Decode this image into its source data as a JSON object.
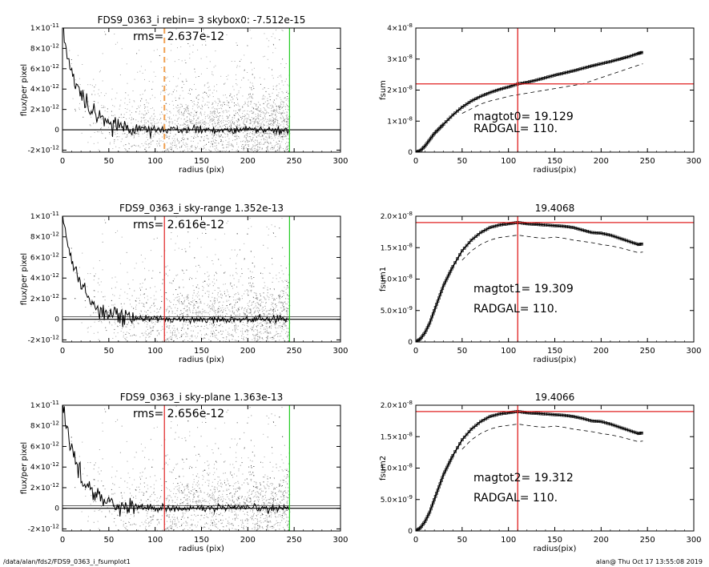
{
  "footer": {
    "left": "/data/alan/fds2/FDS9_0363_i_fsumplot1",
    "right": "alan@  Thu Oct 17 13:55:08 2019"
  },
  "colors": {
    "scatter": "#a8a8a8",
    "profile": "#000000",
    "red": "#e02020",
    "green": "#22cc22",
    "orange": "#f0a050"
  },
  "chart_data": [
    {
      "type": "scatter",
      "panel": "flux-1",
      "title": "FDS9_0363_i rebin= 3    skybox0: -7.512e-15",
      "annotation": "rms= 2.637e-12",
      "xlabel": "radius (pix)",
      "ylabel": "flux/per pixel",
      "xlim": [
        0,
        300
      ],
      "ylim": [
        -2.2e-12,
        1e-11
      ],
      "xticks": [
        0,
        50,
        100,
        150,
        200,
        250,
        300
      ],
      "yticks": [
        {
          "value": 1e-11,
          "label": "1×10",
          "exp": "-11"
        },
        {
          "value": 8e-12,
          "label": "8×10",
          "exp": "-12"
        },
        {
          "value": 6e-12,
          "label": "6×10",
          "exp": "-12"
        },
        {
          "value": 4e-12,
          "label": "4×10",
          "exp": "-12"
        },
        {
          "value": 2e-12,
          "label": "2×10",
          "exp": "-12"
        },
        {
          "value": 0,
          "label": "0",
          "exp": ""
        },
        {
          "value": -2e-12,
          "label": "-2×10",
          "exp": "-12"
        }
      ],
      "vlines": [
        {
          "x": 110,
          "color": "orange",
          "dash": true
        },
        {
          "x": 245,
          "color": "green",
          "dash": false
        }
      ],
      "hline": 0,
      "scatter_max_radius": 245
    },
    {
      "type": "line",
      "panel": "fsum-1",
      "title": "",
      "annotations": [
        "magtot0=  19.129",
        "RADGAL=    110."
      ],
      "xlabel": "radius(pix)",
      "ylabel": "fsum",
      "xlim": [
        0,
        300
      ],
      "ylim": [
        0,
        4e-08
      ],
      "xticks": [
        0,
        50,
        100,
        150,
        200,
        250,
        300
      ],
      "yticks": [
        {
          "value": 0,
          "label": "0",
          "exp": ""
        },
        {
          "value": 1e-08,
          "label": "1×10",
          "exp": "-8"
        },
        {
          "value": 2e-08,
          "label": "2×10",
          "exp": "-8"
        },
        {
          "value": 3e-08,
          "label": "3×10",
          "exp": "-8"
        },
        {
          "value": 4e-08,
          "label": "4×10",
          "exp": "-8"
        }
      ],
      "vline": 110,
      "hline": 2.2e-08,
      "series": [
        {
          "style": "squares",
          "x": [
            0,
            5,
            10,
            15,
            20,
            25,
            30,
            40,
            50,
            60,
            70,
            80,
            90,
            100,
            110,
            120,
            130,
            140,
            150,
            160,
            170,
            180,
            190,
            200,
            210,
            220,
            230,
            240,
            245
          ],
          "y": [
            0,
            5e-10,
            2e-09,
            4e-09,
            6e-09,
            7.5e-09,
            9e-09,
            1.2e-08,
            1.45e-08,
            1.65e-08,
            1.8e-08,
            1.92e-08,
            2.02e-08,
            2.1e-08,
            2.2e-08,
            2.25e-08,
            2.32e-08,
            2.4e-08,
            2.48e-08,
            2.55e-08,
            2.62e-08,
            2.7e-08,
            2.78e-08,
            2.85e-08,
            2.92e-08,
            3e-08,
            3.08e-08,
            3.18e-08,
            3.22e-08
          ]
        },
        {
          "style": "dashed",
          "x": [
            50,
            60,
            70,
            80,
            90,
            100,
            110,
            120,
            130,
            140,
            150,
            160,
            170,
            180,
            190,
            200,
            210,
            220,
            230,
            240,
            245
          ],
          "y": [
            1.25e-08,
            1.4e-08,
            1.55e-08,
            1.65e-08,
            1.72e-08,
            1.8e-08,
            1.85e-08,
            1.9e-08,
            1.95e-08,
            2e-08,
            2.05e-08,
            2.1e-08,
            2.15e-08,
            2.2e-08,
            2.3e-08,
            2.4e-08,
            2.5e-08,
            2.6e-08,
            2.7e-08,
            2.8e-08,
            2.85e-08
          ]
        }
      ]
    },
    {
      "type": "scatter",
      "panel": "flux-2",
      "title": "FDS9_0363_i sky-range  1.352e-13",
      "annotation": "rms= 2.616e-12",
      "xlabel": "radius (pix)",
      "ylabel": "flux/per pixel",
      "xlim": [
        0,
        300
      ],
      "ylim": [
        -2.2e-12,
        1e-11
      ],
      "xticks": [
        0,
        50,
        100,
        150,
        200,
        250,
        300
      ],
      "yticks": [
        {
          "value": 1e-11,
          "label": "1×10",
          "exp": "-11"
        },
        {
          "value": 8e-12,
          "label": "8×10",
          "exp": "-12"
        },
        {
          "value": 6e-12,
          "label": "6×10",
          "exp": "-12"
        },
        {
          "value": 4e-12,
          "label": "4×10",
          "exp": "-12"
        },
        {
          "value": 2e-12,
          "label": "2×10",
          "exp": "-12"
        },
        {
          "value": 0,
          "label": "0",
          "exp": ""
        },
        {
          "value": -2e-12,
          "label": "-2×10",
          "exp": "-12"
        }
      ],
      "vlines": [
        {
          "x": 110,
          "color": "red",
          "dash": false
        },
        {
          "x": 245,
          "color": "green",
          "dash": false
        }
      ],
      "hline": 0,
      "scatter_max_radius": 245
    },
    {
      "type": "line",
      "panel": "fsum-2",
      "title": "19.4068",
      "annotations": [
        "magtot1=  19.309",
        "RADGAL=    110."
      ],
      "xlabel": "radius(pix)",
      "ylabel": "fsum1",
      "xlim": [
        0,
        300
      ],
      "ylim": [
        0,
        2e-08
      ],
      "xticks": [
        0,
        50,
        100,
        150,
        200,
        250,
        300
      ],
      "yticks": [
        {
          "value": 0,
          "label": "0",
          "exp": ""
        },
        {
          "value": 5e-09,
          "label": "5.0×10",
          "exp": "-9"
        },
        {
          "value": 1e-08,
          "label": "1.0×10",
          "exp": "-8"
        },
        {
          "value": 1.5e-08,
          "label": "1.5×10",
          "exp": "-8"
        },
        {
          "value": 2e-08,
          "label": "2.0×10",
          "exp": "-8"
        }
      ],
      "vline": 110,
      "hline": 1.9e-08,
      "series": [
        {
          "style": "squares",
          "x": [
            0,
            5,
            10,
            15,
            20,
            25,
            30,
            35,
            40,
            50,
            60,
            70,
            80,
            90,
            100,
            110,
            120,
            130,
            140,
            150,
            160,
            170,
            180,
            190,
            200,
            210,
            220,
            230,
            240,
            245
          ],
          "y": [
            0,
            5e-10,
            1.5e-09,
            3e-09,
            5e-09,
            7e-09,
            9e-09,
            1.05e-08,
            1.2e-08,
            1.45e-08,
            1.62e-08,
            1.74e-08,
            1.82e-08,
            1.86e-08,
            1.88e-08,
            1.9e-08,
            1.88e-08,
            1.87e-08,
            1.86e-08,
            1.85e-08,
            1.84e-08,
            1.82e-08,
            1.78e-08,
            1.74e-08,
            1.73e-08,
            1.7e-08,
            1.65e-08,
            1.6e-08,
            1.55e-08,
            1.56e-08
          ]
        },
        {
          "style": "dashed",
          "x": [
            50,
            60,
            70,
            80,
            90,
            100,
            110,
            120,
            130,
            140,
            150,
            160,
            170,
            180,
            190,
            200,
            210,
            220,
            230,
            240,
            245
          ],
          "y": [
            1.3e-08,
            1.45e-08,
            1.55e-08,
            1.62e-08,
            1.66e-08,
            1.68e-08,
            1.7e-08,
            1.68e-08,
            1.66e-08,
            1.65e-08,
            1.67e-08,
            1.65e-08,
            1.62e-08,
            1.6e-08,
            1.58e-08,
            1.55e-08,
            1.53e-08,
            1.5e-08,
            1.46e-08,
            1.42e-08,
            1.43e-08
          ]
        }
      ]
    },
    {
      "type": "scatter",
      "panel": "flux-3",
      "title": "FDS9_0363_i sky-plane  1.363e-13",
      "annotation": "rms= 2.656e-12",
      "xlabel": "radius (pix)",
      "ylabel": "flux/per pixel",
      "xlim": [
        0,
        300
      ],
      "ylim": [
        -2.2e-12,
        1e-11
      ],
      "xticks": [
        0,
        50,
        100,
        150,
        200,
        250,
        300
      ],
      "yticks": [
        {
          "value": 1e-11,
          "label": "1×10",
          "exp": "-11"
        },
        {
          "value": 8e-12,
          "label": "8×10",
          "exp": "-12"
        },
        {
          "value": 6e-12,
          "label": "6×10",
          "exp": "-12"
        },
        {
          "value": 4e-12,
          "label": "4×10",
          "exp": "-12"
        },
        {
          "value": 2e-12,
          "label": "2×10",
          "exp": "-12"
        },
        {
          "value": 0,
          "label": "0",
          "exp": ""
        },
        {
          "value": -2e-12,
          "label": "-2×10",
          "exp": "-12"
        }
      ],
      "vlines": [
        {
          "x": 110,
          "color": "red",
          "dash": false
        },
        {
          "x": 245,
          "color": "green",
          "dash": false
        }
      ],
      "hline": 0,
      "scatter_max_radius": 245
    },
    {
      "type": "line",
      "panel": "fsum-3",
      "title": "19.4066",
      "annotations": [
        "magtot2=  19.312",
        "RADGAL=    110."
      ],
      "xlabel": "radius(pix)",
      "ylabel": "fsum2",
      "xlim": [
        0,
        300
      ],
      "ylim": [
        0,
        2e-08
      ],
      "xticks": [
        0,
        50,
        100,
        150,
        200,
        250,
        300
      ],
      "yticks": [
        {
          "value": 0,
          "label": "0",
          "exp": ""
        },
        {
          "value": 5e-09,
          "label": "5.0×10",
          "exp": "-9"
        },
        {
          "value": 1e-08,
          "label": "1.0×10",
          "exp": "-8"
        },
        {
          "value": 1.5e-08,
          "label": "1.5×10",
          "exp": "-8"
        },
        {
          "value": 2e-08,
          "label": "2.0×10",
          "exp": "-8"
        }
      ],
      "vline": 110,
      "hline": 1.9e-08,
      "series": [
        {
          "style": "squares",
          "x": [
            0,
            5,
            10,
            15,
            20,
            25,
            30,
            35,
            40,
            50,
            60,
            70,
            80,
            90,
            100,
            110,
            120,
            130,
            140,
            150,
            160,
            170,
            180,
            190,
            200,
            210,
            220,
            230,
            240,
            245
          ],
          "y": [
            0,
            5e-10,
            1.5e-09,
            3e-09,
            5e-09,
            7e-09,
            9e-09,
            1.05e-08,
            1.2e-08,
            1.45e-08,
            1.62e-08,
            1.74e-08,
            1.82e-08,
            1.86e-08,
            1.88e-08,
            1.9e-08,
            1.88e-08,
            1.87e-08,
            1.86e-08,
            1.85e-08,
            1.84e-08,
            1.82e-08,
            1.79e-08,
            1.75e-08,
            1.74e-08,
            1.7e-08,
            1.65e-08,
            1.6e-08,
            1.55e-08,
            1.56e-08
          ]
        },
        {
          "style": "dashed",
          "x": [
            50,
            60,
            70,
            80,
            90,
            100,
            110,
            120,
            130,
            140,
            150,
            160,
            170,
            180,
            190,
            200,
            210,
            220,
            230,
            240,
            245
          ],
          "y": [
            1.3e-08,
            1.45e-08,
            1.55e-08,
            1.62e-08,
            1.66e-08,
            1.68e-08,
            1.7e-08,
            1.68e-08,
            1.66e-08,
            1.65e-08,
            1.67e-08,
            1.65e-08,
            1.62e-08,
            1.6e-08,
            1.58e-08,
            1.55e-08,
            1.53e-08,
            1.5e-08,
            1.46e-08,
            1.42e-08,
            1.43e-08
          ]
        }
      ]
    }
  ]
}
